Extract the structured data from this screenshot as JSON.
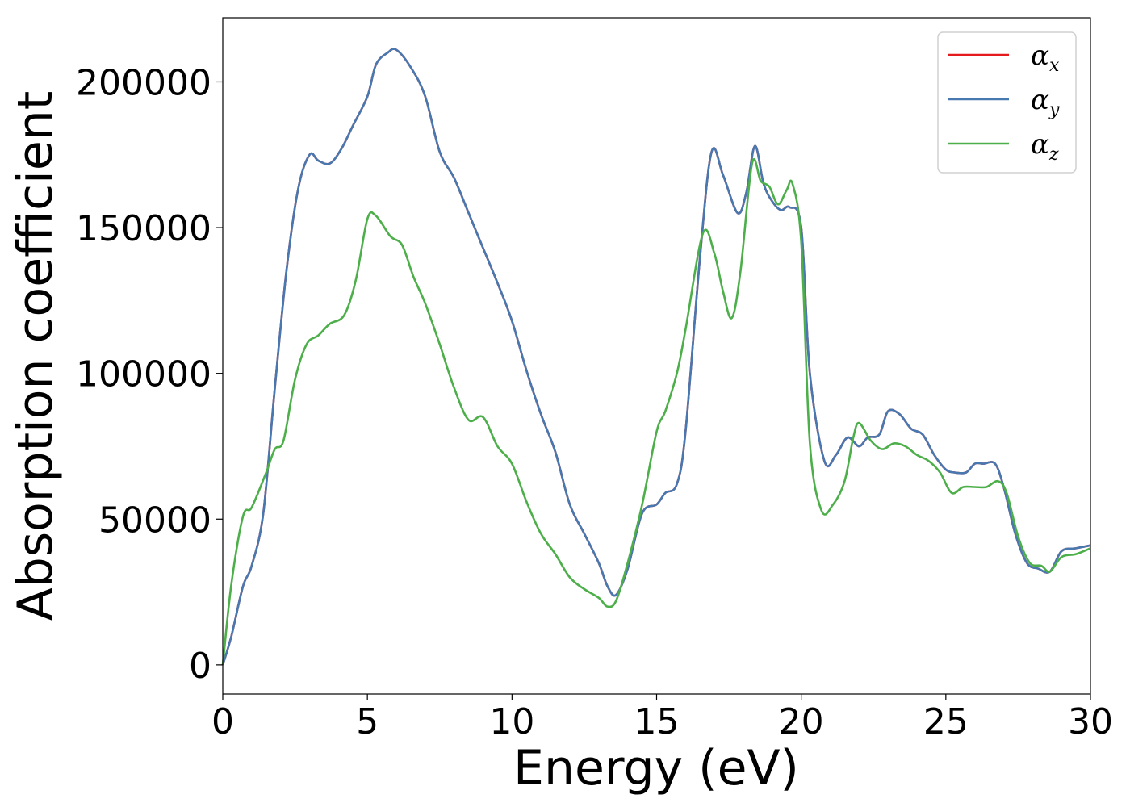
{
  "chart_data": {
    "type": "line",
    "title": "",
    "xlabel": "Energy (eV)",
    "ylabel": "Absorption coefficient",
    "xlim": [
      0,
      30
    ],
    "ylim": [
      -10000,
      222000
    ],
    "xticks": [
      0,
      5,
      10,
      15,
      20,
      25,
      30
    ],
    "yticks": [
      0,
      50000,
      100000,
      150000,
      200000
    ],
    "grid": false,
    "legend_position": "top-right",
    "series": [
      {
        "name": "αx",
        "symbol": "α",
        "subscript": "x",
        "color": "#e41a1c",
        "x": [
          0,
          0.3,
          0.7,
          1.0,
          1.4,
          1.8,
          2.2,
          2.6,
          3.0,
          3.3,
          3.7,
          4.1,
          4.5,
          5.0,
          5.3,
          5.7,
          6.0,
          6.5,
          7.0,
          7.5,
          8.0,
          8.5,
          9.0,
          9.5,
          10.0,
          10.5,
          11.0,
          11.5,
          12.0,
          12.5,
          13.0,
          13.3,
          13.6,
          14.0,
          14.5,
          15.0,
          15.3,
          15.7,
          16.0,
          16.5,
          16.9,
          17.3,
          17.8,
          18.1,
          18.4,
          18.7,
          19.0,
          19.3,
          19.6,
          20.0,
          20.3,
          20.8,
          21.2,
          21.6,
          22.0,
          22.3,
          22.7,
          23.0,
          23.4,
          23.8,
          24.2,
          24.6,
          25.0,
          25.3,
          25.7,
          26.0,
          26.3,
          26.7,
          27.0,
          27.4,
          27.8,
          28.2,
          28.6,
          29.0,
          29.5,
          30.0
        ],
        "y": [
          0,
          10000,
          27000,
          34000,
          52000,
          95000,
          135000,
          163000,
          175000,
          173000,
          172000,
          177000,
          185000,
          195000,
          206000,
          210000,
          211000,
          205000,
          195000,
          176000,
          167000,
          155000,
          143000,
          131000,
          118000,
          101000,
          86000,
          73000,
          55000,
          45000,
          35000,
          27000,
          24000,
          33000,
          52000,
          55000,
          59000,
          62000,
          80000,
          140000,
          176000,
          168000,
          155000,
          162000,
          178000,
          165000,
          159000,
          156000,
          157000,
          150000,
          100000,
          70000,
          72000,
          78000,
          75000,
          78000,
          79000,
          87000,
          86000,
          81000,
          79000,
          72000,
          67000,
          66000,
          66000,
          69000,
          69000,
          69000,
          61000,
          45000,
          35000,
          33000,
          32000,
          39000,
          40000,
          41000
        ]
      },
      {
        "name": "αy",
        "symbol": "α",
        "subscript": "y",
        "color": "#4878b0",
        "x": [
          0,
          0.3,
          0.7,
          1.0,
          1.4,
          1.8,
          2.2,
          2.6,
          3.0,
          3.3,
          3.7,
          4.1,
          4.5,
          5.0,
          5.3,
          5.7,
          6.0,
          6.5,
          7.0,
          7.5,
          8.0,
          8.5,
          9.0,
          9.5,
          10.0,
          10.5,
          11.0,
          11.5,
          12.0,
          12.5,
          13.0,
          13.3,
          13.6,
          14.0,
          14.5,
          15.0,
          15.3,
          15.7,
          16.0,
          16.5,
          16.9,
          17.3,
          17.8,
          18.1,
          18.4,
          18.7,
          19.0,
          19.3,
          19.6,
          20.0,
          20.3,
          20.8,
          21.2,
          21.6,
          22.0,
          22.3,
          22.7,
          23.0,
          23.4,
          23.8,
          24.2,
          24.6,
          25.0,
          25.3,
          25.7,
          26.0,
          26.3,
          26.7,
          27.0,
          27.4,
          27.8,
          28.2,
          28.6,
          29.0,
          29.5,
          30.0
        ],
        "y": [
          0,
          10000,
          27000,
          34000,
          52000,
          95000,
          135000,
          163000,
          175000,
          173000,
          172000,
          177000,
          185000,
          195000,
          206000,
          210000,
          211000,
          205000,
          195000,
          176000,
          167000,
          155000,
          143000,
          131000,
          118000,
          101000,
          86000,
          73000,
          55000,
          45000,
          35000,
          27000,
          24000,
          33000,
          52000,
          55000,
          59000,
          62000,
          80000,
          140000,
          176000,
          168000,
          155000,
          162000,
          178000,
          165000,
          159000,
          156000,
          157000,
          150000,
          100000,
          70000,
          72000,
          78000,
          75000,
          78000,
          79000,
          87000,
          86000,
          81000,
          79000,
          72000,
          67000,
          66000,
          66000,
          69000,
          69000,
          69000,
          61000,
          45000,
          35000,
          33000,
          32000,
          39000,
          40000,
          41000
        ]
      },
      {
        "name": "αz",
        "symbol": "α",
        "subscript": "z",
        "color": "#4daf4a",
        "x": [
          0,
          0.3,
          0.7,
          1.0,
          1.5,
          1.8,
          2.1,
          2.5,
          2.9,
          3.3,
          3.7,
          4.2,
          4.6,
          5.0,
          5.3,
          5.8,
          6.2,
          6.6,
          7.0,
          7.5,
          8.0,
          8.5,
          9.0,
          9.5,
          10.0,
          10.5,
          11.0,
          11.5,
          12.0,
          12.5,
          13.0,
          13.3,
          13.6,
          14.0,
          14.5,
          15.0,
          15.3,
          15.7,
          16.0,
          16.6,
          17.0,
          17.3,
          17.6,
          17.9,
          18.3,
          18.6,
          18.9,
          19.2,
          19.5,
          19.7,
          20.0,
          20.3,
          20.7,
          21.1,
          21.5,
          21.8,
          22.0,
          22.4,
          22.8,
          23.2,
          23.6,
          24.0,
          24.4,
          24.8,
          25.2,
          25.6,
          26.0,
          26.4,
          26.8,
          27.1,
          27.5,
          27.9,
          28.3,
          28.6,
          29.0,
          29.5,
          30.0
        ],
        "y": [
          0,
          28000,
          51000,
          54000,
          66000,
          74000,
          77000,
          98000,
          110000,
          113000,
          117000,
          120000,
          132000,
          153000,
          154000,
          147000,
          144000,
          133000,
          124000,
          110000,
          95000,
          84000,
          85000,
          75000,
          69000,
          56000,
          45000,
          38000,
          30000,
          26000,
          23000,
          20000,
          22000,
          35000,
          55000,
          80000,
          87000,
          100000,
          115000,
          148000,
          141000,
          128000,
          119000,
          135000,
          172000,
          166000,
          164000,
          158000,
          163000,
          165000,
          145000,
          76000,
          53000,
          55000,
          63000,
          78000,
          83000,
          77000,
          74000,
          76000,
          75000,
          72000,
          70000,
          66000,
          59000,
          61000,
          61000,
          61000,
          63000,
          59000,
          44000,
          35000,
          34000,
          32000,
          37000,
          38000,
          40000
        ]
      }
    ]
  }
}
